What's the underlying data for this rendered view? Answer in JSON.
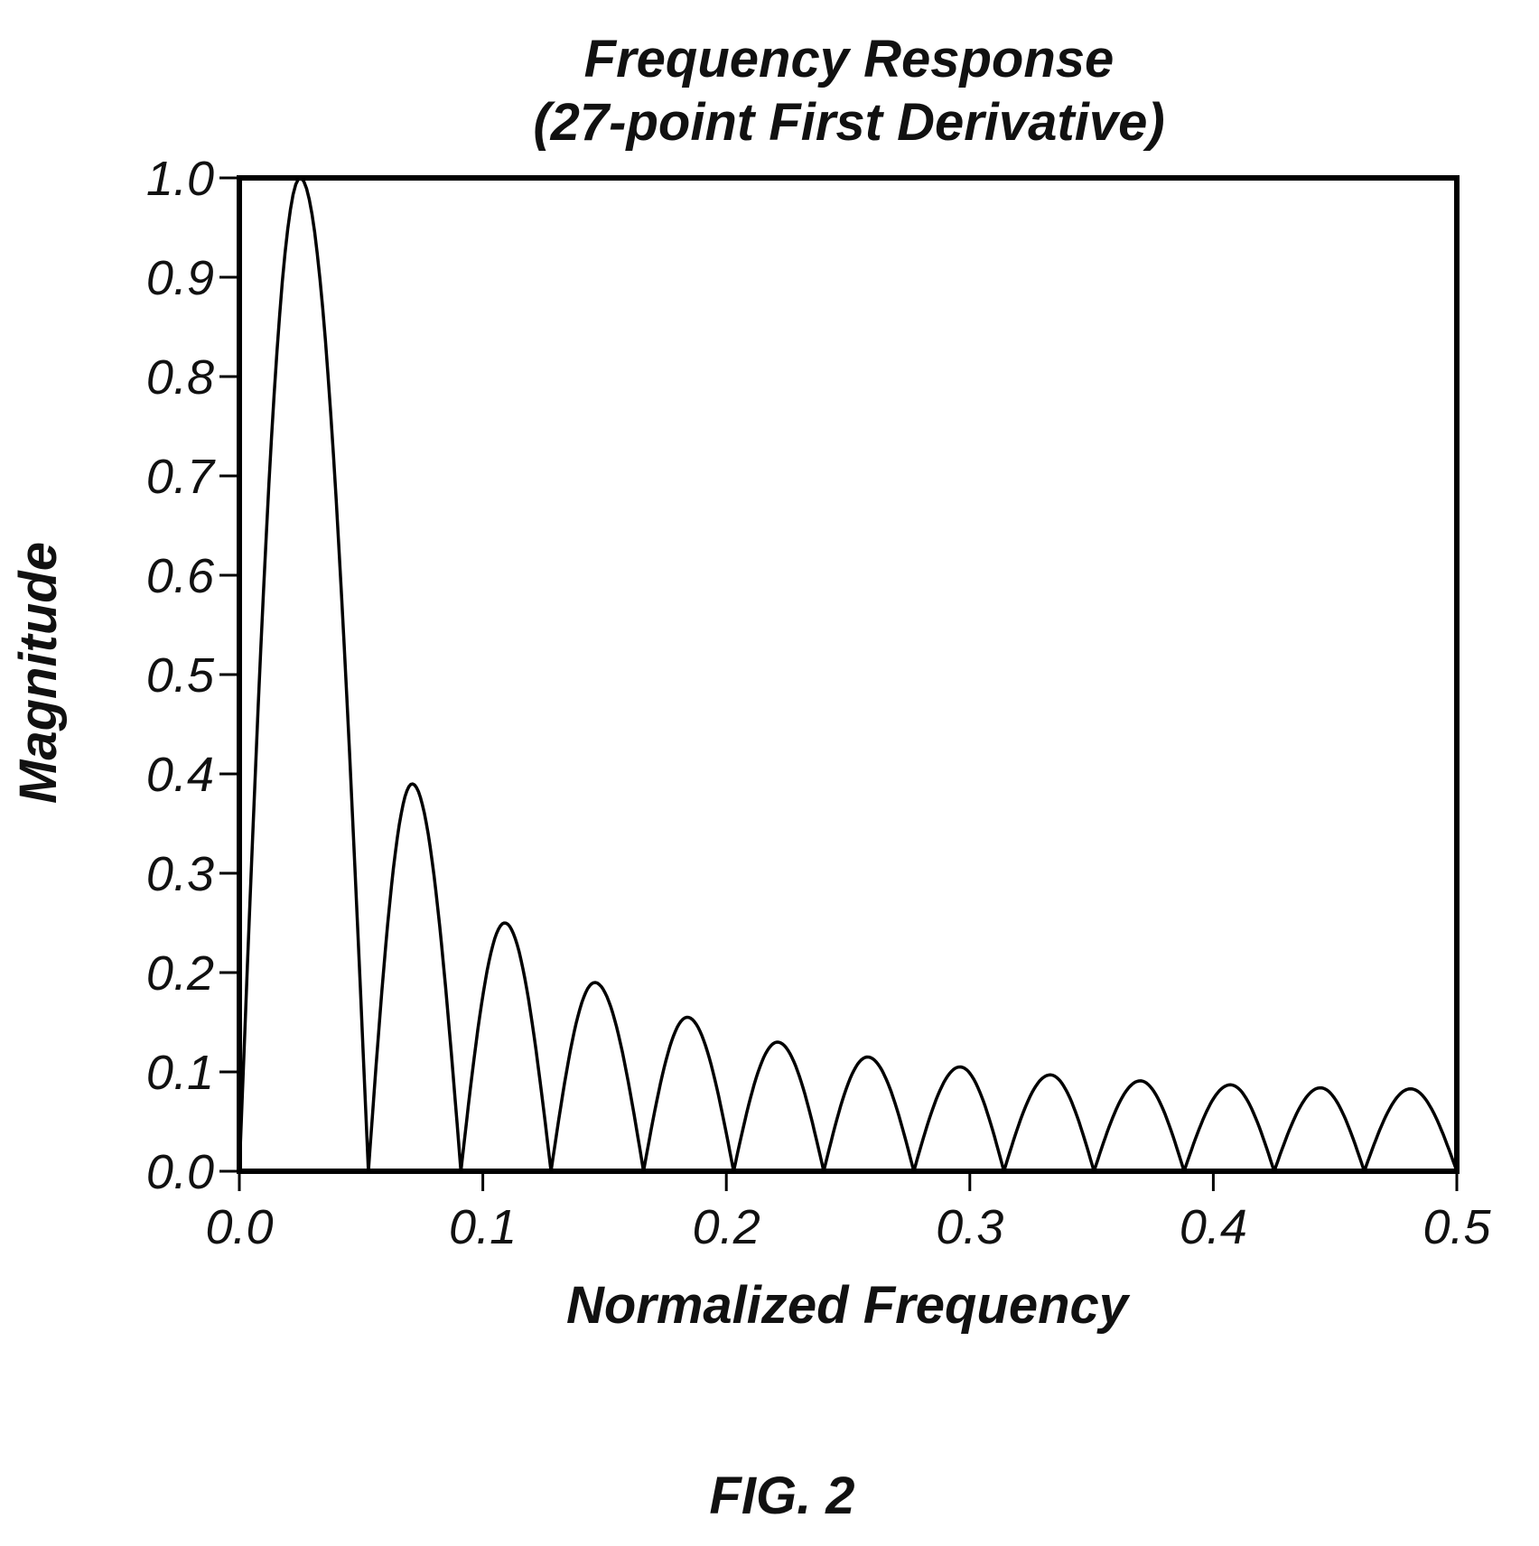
{
  "chart_data": {
    "type": "line",
    "title": [
      "Frequency Response",
      "(27-point First Derivative)"
    ],
    "xlabel": "Normalized Frequency",
    "ylabel": "Magnitude",
    "xlim": [
      0.0,
      0.5
    ],
    "ylim": [
      0.0,
      1.0
    ],
    "x_ticks": [
      {
        "value": 0.0,
        "label": "0.0"
      },
      {
        "value": 0.1,
        "label": "0.1"
      },
      {
        "value": 0.2,
        "label": "0.2"
      },
      {
        "value": 0.3,
        "label": "0.3"
      },
      {
        "value": 0.4,
        "label": "0.4"
      },
      {
        "value": 0.5,
        "label": "0.5"
      }
    ],
    "y_ticks": [
      {
        "value": 0.0,
        "label": "0.0"
      },
      {
        "value": 0.1,
        "label": "0.1"
      },
      {
        "value": 0.2,
        "label": "0.2"
      },
      {
        "value": 0.3,
        "label": "0.3"
      },
      {
        "value": 0.4,
        "label": "0.4"
      },
      {
        "value": 0.5,
        "label": "0.5"
      },
      {
        "value": 0.6,
        "label": "0.6"
      },
      {
        "value": 0.7,
        "label": "0.7"
      },
      {
        "value": 0.8,
        "label": "0.8"
      },
      {
        "value": 0.9,
        "label": "0.9"
      },
      {
        "value": 1.0,
        "label": "1.0"
      }
    ],
    "grid": false,
    "legend": "none",
    "series": [
      {
        "color": "#000000",
        "lobes": [
          {
            "start": 0.0,
            "end": 0.053,
            "peak_x": 0.025,
            "peak_y": 1.0
          },
          {
            "start": 0.053,
            "end": 0.091,
            "peak_x": 0.071,
            "peak_y": 0.39
          },
          {
            "start": 0.091,
            "end": 0.128,
            "peak_x": 0.109,
            "peak_y": 0.25
          },
          {
            "start": 0.128,
            "end": 0.166,
            "peak_x": 0.146,
            "peak_y": 0.19
          },
          {
            "start": 0.166,
            "end": 0.203,
            "peak_x": 0.184,
            "peak_y": 0.155
          },
          {
            "start": 0.203,
            "end": 0.24,
            "peak_x": 0.221,
            "peak_y": 0.13
          },
          {
            "start": 0.24,
            "end": 0.277,
            "peak_x": 0.258,
            "peak_y": 0.115
          },
          {
            "start": 0.277,
            "end": 0.314,
            "peak_x": 0.296,
            "peak_y": 0.105
          },
          {
            "start": 0.314,
            "end": 0.351,
            "peak_x": 0.333,
            "peak_y": 0.097
          },
          {
            "start": 0.351,
            "end": 0.388,
            "peak_x": 0.37,
            "peak_y": 0.091
          },
          {
            "start": 0.388,
            "end": 0.425,
            "peak_x": 0.407,
            "peak_y": 0.087
          },
          {
            "start": 0.425,
            "end": 0.462,
            "peak_x": 0.444,
            "peak_y": 0.084
          },
          {
            "start": 0.462,
            "end": 0.5,
            "peak_x": 0.481,
            "peak_y": 0.083
          }
        ]
      }
    ]
  },
  "figure_label": "FIG. 2"
}
